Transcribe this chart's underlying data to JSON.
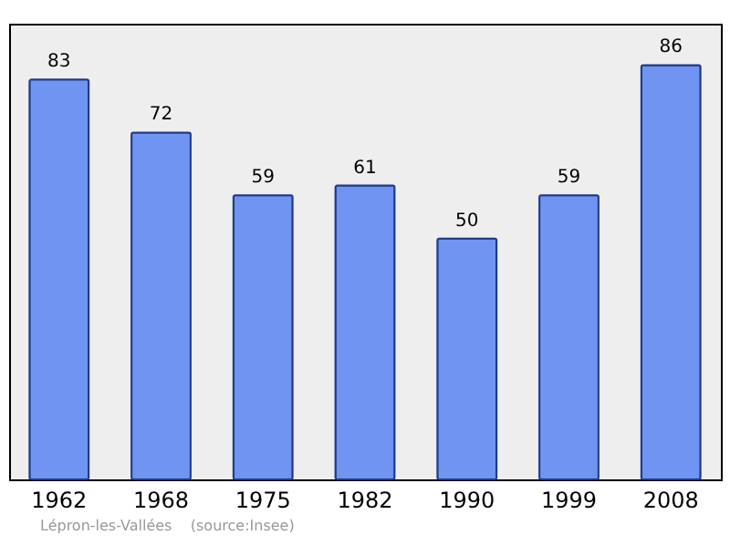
{
  "chart_data": {
    "type": "bar",
    "categories": [
      "1962",
      "1968",
      "1975",
      "1982",
      "1990",
      "1999",
      "2008"
    ],
    "values": [
      83,
      72,
      59,
      61,
      50,
      59,
      86
    ],
    "color": "#6f94f2",
    "data_labels": true,
    "annotations": [
      "Lépron-les-Vallées    (source:Insee)"
    ]
  }
}
